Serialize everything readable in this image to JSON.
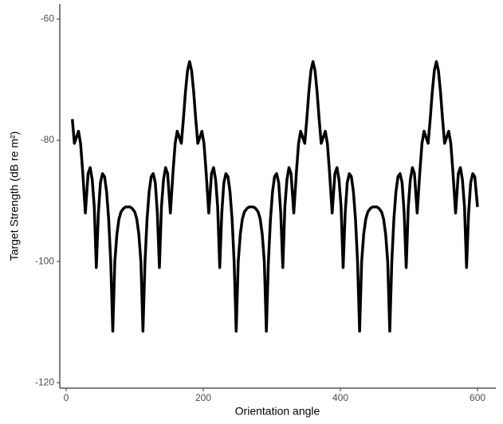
{
  "chart_data": {
    "type": "line",
    "x_label": "Orientation angle",
    "y_label": "Target Strength (dB re m²)",
    "color": "#000000",
    "xlim": [
      -9.3,
      626.7
    ],
    "xticks": [
      0,
      200,
      400,
      600
    ],
    "ylim": [
      -120.9,
      -57.5
    ],
    "yticks": [
      -60,
      -80,
      -100,
      -120
    ],
    "x": [
      9,
      12,
      15,
      18,
      21,
      24,
      28,
      32,
      35,
      38,
      41,
      44,
      47,
      50,
      53,
      56,
      59,
      62,
      65,
      68,
      71,
      74,
      77,
      80,
      84,
      87,
      90,
      93,
      96,
      100,
      103,
      106,
      109,
      112,
      115,
      118,
      121,
      124,
      127,
      130,
      133,
      136,
      139,
      142,
      145,
      148,
      152,
      156,
      159,
      162,
      165,
      168,
      171,
      174,
      177,
      180,
      183,
      186,
      189,
      192,
      195,
      198,
      201,
      204,
      208,
      212,
      215,
      218,
      221,
      224,
      227,
      230,
      233,
      236,
      239,
      242,
      245,
      248,
      251,
      254,
      257,
      260,
      264,
      267,
      270,
      273,
      276,
      280,
      283,
      286,
      289,
      292,
      295,
      298,
      301,
      304,
      307,
      310,
      313,
      316,
      319,
      322,
      325,
      328,
      332,
      336,
      339,
      342,
      345,
      348,
      351,
      354,
      357,
      360,
      363,
      366,
      369,
      372,
      375,
      378,
      381,
      384,
      388,
      392,
      395,
      398,
      401,
      404,
      407,
      410,
      413,
      416,
      419,
      422,
      425,
      428,
      431,
      434,
      437,
      440,
      444,
      447,
      450,
      453,
      456,
      460,
      463,
      466,
      469,
      472,
      475,
      478,
      481,
      484,
      487,
      490,
      493,
      496,
      499,
      502,
      505,
      508,
      512,
      516,
      519,
      522,
      525,
      528,
      531,
      534,
      537,
      540,
      543,
      546,
      549,
      552,
      555,
      558,
      561,
      564,
      568,
      572,
      575,
      578,
      581,
      584,
      587,
      590,
      593,
      596,
      600
    ],
    "values": [
      -76.5,
      -80.5,
      -79.5,
      -78.5,
      -80.5,
      -85,
      -92,
      -85.5,
      -84.5,
      -86.5,
      -91,
      -101,
      -92,
      -87,
      -85.5,
      -86,
      -88.5,
      -93,
      -100,
      -111.5,
      -100,
      -95.5,
      -93,
      -91.8,
      -91.2,
      -91,
      -91,
      -91,
      -91.2,
      -91.8,
      -93,
      -95.5,
      -100,
      -111.5,
      -100,
      -93,
      -88.5,
      -86,
      -85.5,
      -87,
      -92,
      -101,
      -91,
      -86.5,
      -84.5,
      -85.5,
      -92,
      -85,
      -80.5,
      -78.5,
      -79.5,
      -80.5,
      -76.5,
      -72,
      -68.5,
      -67,
      -68.5,
      -72,
      -76.5,
      -80.5,
      -79.5,
      -78.5,
      -80.5,
      -85,
      -92,
      -85.5,
      -84.5,
      -86.5,
      -91,
      -101,
      -92,
      -87,
      -85.5,
      -86,
      -88.5,
      -93,
      -100,
      -111.5,
      -100,
      -95.5,
      -93,
      -91.8,
      -91.2,
      -91,
      -91,
      -91,
      -91.2,
      -91.8,
      -93,
      -95.5,
      -100,
      -111.5,
      -100,
      -93,
      -88.5,
      -86,
      -85.5,
      -87,
      -92,
      -101,
      -91,
      -86.5,
      -84.5,
      -85.5,
      -92,
      -85,
      -80.5,
      -78.5,
      -79.5,
      -80.5,
      -76.5,
      -72,
      -68.5,
      -67,
      -68.5,
      -72,
      -76.5,
      -80.5,
      -79.5,
      -78.5,
      -80.5,
      -85,
      -92,
      -85.5,
      -84.5,
      -86.5,
      -91,
      -101,
      -92,
      -87,
      -85.5,
      -86,
      -88.5,
      -93,
      -100,
      -111.5,
      -100,
      -95.5,
      -93,
      -91.8,
      -91.2,
      -91,
      -91,
      -91,
      -91.2,
      -91.8,
      -93,
      -95.5,
      -100,
      -111.5,
      -100,
      -93,
      -88.5,
      -86,
      -85.5,
      -87,
      -92,
      -101,
      -91,
      -86.5,
      -84.5,
      -85.5,
      -92,
      -85,
      -80.5,
      -78.5,
      -79.5,
      -80.5,
      -76.5,
      -72,
      -68.5,
      -67,
      -68.5,
      -72,
      -76.5,
      -80.5,
      -79.5,
      -78.5,
      -80.5,
      -85,
      -92,
      -85.5,
      -84.5,
      -86.5,
      -91,
      -101,
      -92,
      -87,
      -85.5,
      -86,
      -91
    ]
  }
}
